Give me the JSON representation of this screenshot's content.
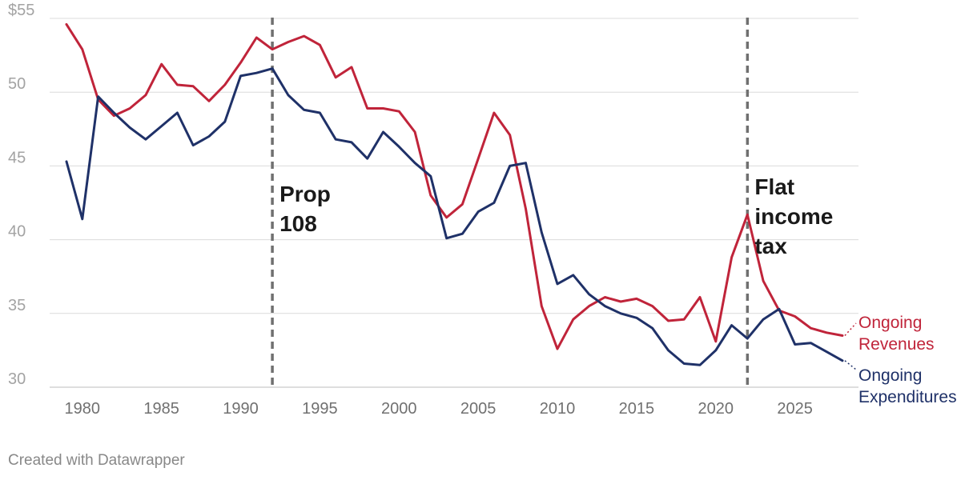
{
  "chart_data": {
    "type": "line",
    "x": [
      1979,
      1980,
      1981,
      1982,
      1983,
      1984,
      1985,
      1986,
      1987,
      1988,
      1989,
      1990,
      1991,
      1992,
      1993,
      1994,
      1995,
      1996,
      1997,
      1998,
      1999,
      2000,
      2001,
      2002,
      2003,
      2004,
      2005,
      2006,
      2007,
      2008,
      2009,
      2010,
      2011,
      2012,
      2013,
      2014,
      2015,
      2016,
      2017,
      2018,
      2019,
      2020,
      2021,
      2022,
      2023,
      2024,
      2025,
      2026,
      2027,
      2028
    ],
    "series": [
      {
        "name": "Ongoing Revenues",
        "color": "#c0243a",
        "values": [
          54.6,
          52.9,
          49.5,
          48.4,
          48.9,
          49.8,
          51.9,
          50.5,
          50.4,
          49.4,
          50.5,
          52.0,
          53.7,
          52.9,
          53.4,
          53.8,
          53.2,
          51.0,
          51.7,
          48.9,
          48.9,
          48.7,
          47.3,
          43.0,
          41.5,
          42.4,
          45.5,
          48.6,
          47.1,
          42.1,
          35.5,
          32.6,
          34.6,
          35.5,
          36.1,
          35.8,
          36.0,
          35.5,
          34.5,
          34.6,
          36.1,
          33.1,
          38.8,
          41.7,
          37.2,
          35.2,
          34.8,
          34.0,
          33.7,
          33.5
        ]
      },
      {
        "name": "Ongoing Expenditures",
        "color": "#1f3168",
        "values": [
          45.3,
          41.4,
          49.7,
          48.6,
          47.6,
          46.8,
          47.7,
          48.6,
          46.4,
          47.0,
          48.0,
          51.1,
          51.3,
          51.6,
          49.8,
          48.8,
          48.6,
          46.8,
          46.6,
          45.5,
          47.3,
          46.3,
          45.2,
          44.3,
          40.1,
          40.4,
          41.9,
          42.5,
          45.0,
          45.2,
          40.5,
          37.0,
          37.6,
          36.3,
          35.5,
          35.0,
          34.7,
          34.0,
          32.5,
          31.6,
          31.5,
          32.5,
          34.2,
          33.3,
          34.6,
          35.3,
          32.9,
          33.0,
          32.4,
          31.8
        ]
      }
    ],
    "y_ticks": [
      "$55",
      "50",
      "45",
      "40",
      "35",
      "30"
    ],
    "y_tick_values": [
      55,
      50,
      45,
      40,
      35,
      30
    ],
    "x_ticks": [
      "1980",
      "1985",
      "1990",
      "1995",
      "2000",
      "2005",
      "2010",
      "2015",
      "2020",
      "2025"
    ],
    "x_tick_values": [
      1980,
      1985,
      1990,
      1995,
      2000,
      2005,
      2010,
      2015,
      2020,
      2025
    ],
    "ylim": [
      30,
      55
    ],
    "xlim": [
      1979,
      2028
    ],
    "grid": true,
    "annotations": [
      {
        "year": 1992,
        "lines": [
          "Prop",
          "108"
        ]
      },
      {
        "year": 2022,
        "lines": [
          "Flat",
          "income",
          "tax"
        ]
      }
    ],
    "series_labels": [
      {
        "lines": [
          "Ongoing",
          "Revenues"
        ],
        "color": "#c0243a"
      },
      {
        "lines": [
          "Ongoing",
          "Expenditures"
        ],
        "color": "#1f3168"
      }
    ]
  },
  "footer": "Created with Datawrapper"
}
